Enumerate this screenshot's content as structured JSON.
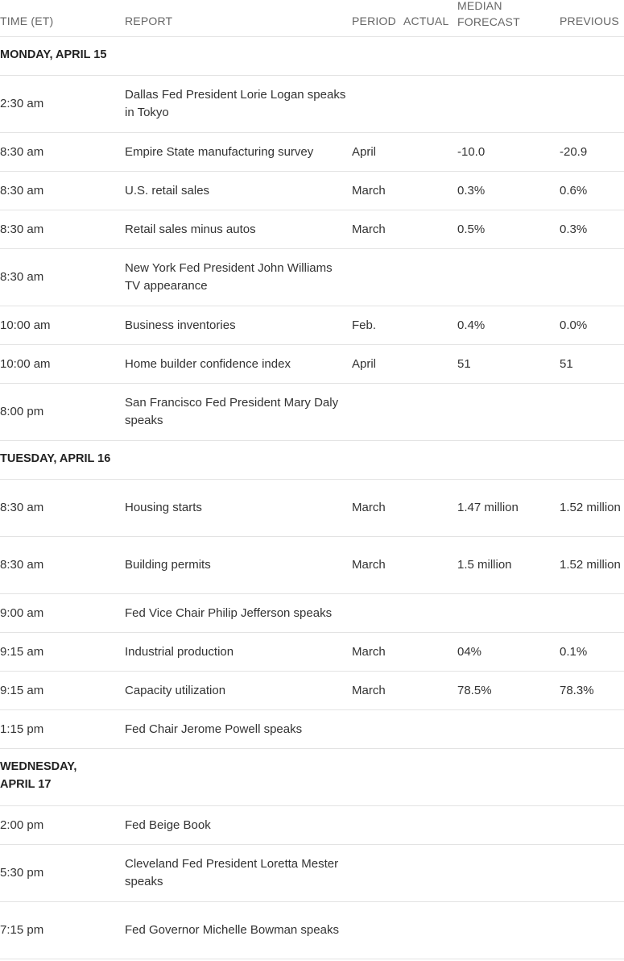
{
  "header": {
    "time": "TIME (ET)",
    "report": "REPORT",
    "period": "PERIOD",
    "actual": "ACTUAL",
    "forecast": "MEDIAN FORECAST",
    "previous": "PREVIOUS"
  },
  "days": [
    {
      "label": "MONDAY, APRIL 15",
      "rows": [
        {
          "time": "2:30 am",
          "report": "Dallas Fed President Lorie Logan speaks in Tokyo",
          "period": "",
          "actual": "",
          "forecast": "",
          "previous": ""
        },
        {
          "time": "8:30 am",
          "report": "Empire State manufacturing survey",
          "period": "April",
          "actual": "",
          "forecast": "-10.0",
          "previous": "-20.9"
        },
        {
          "time": "8:30 am",
          "report": "U.S. retail sales",
          "period": "March",
          "actual": "",
          "forecast": "0.3%",
          "previous": "0.6%"
        },
        {
          "time": "8:30 am",
          "report": "Retail sales minus autos",
          "period": "March",
          "actual": "",
          "forecast": "0.5%",
          "previous": "0.3%"
        },
        {
          "time": "8:30 am",
          "report": "New York Fed President John Williams TV appearance",
          "period": "",
          "actual": "",
          "forecast": "",
          "previous": ""
        },
        {
          "time": "10:00 am",
          "report": "Business inventories",
          "period": "Feb.",
          "actual": "",
          "forecast": "0.4%",
          "previous": "0.0%"
        },
        {
          "time": "10:00 am",
          "report": "Home builder confidence index",
          "period": "April",
          "actual": "",
          "forecast": "51",
          "previous": "51"
        },
        {
          "time": "8:00 pm",
          "report": "San Francisco Fed President Mary Daly speaks",
          "period": "",
          "actual": "",
          "forecast": "",
          "previous": ""
        }
      ]
    },
    {
      "label": "TUESDAY, APRIL 16",
      "rows": [
        {
          "time": "8:30 am",
          "report": "Housing starts",
          "period": "March",
          "actual": "",
          "forecast": "1.47 million",
          "previous": "1.52 million"
        },
        {
          "time": "8:30 am",
          "report": "Building permits",
          "period": "March",
          "actual": "",
          "forecast": "1.5 million",
          "previous": "1.52 million"
        },
        {
          "time": "9:00 am",
          "report": "Fed Vice Chair Philip Jefferson speaks",
          "period": "",
          "actual": "",
          "forecast": "",
          "previous": ""
        },
        {
          "time": "9:15 am",
          "report": "Industrial production",
          "period": "March",
          "actual": "",
          "forecast": "04%",
          "previous": "0.1%"
        },
        {
          "time": "9:15 am",
          "report": "Capacity utilization",
          "period": "March",
          "actual": "",
          "forecast": "78.5%",
          "previous": "78.3%"
        },
        {
          "time": "1:15 pm",
          "report": "Fed Chair Jerome Powell speaks",
          "period": "",
          "actual": "",
          "forecast": "",
          "previous": ""
        }
      ]
    },
    {
      "label": "WEDNESDAY, APRIL 17",
      "rows": [
        {
          "time": "2:00 pm",
          "report": "Fed Beige Book",
          "period": "",
          "actual": "",
          "forecast": "",
          "previous": ""
        },
        {
          "time": "5:30 pm",
          "report": "Cleveland Fed President Loretta Mester speaks",
          "period": "",
          "actual": "",
          "forecast": "",
          "previous": ""
        },
        {
          "time": "7:15 pm",
          "report": "Fed Governor Michelle Bowman speaks",
          "period": "",
          "actual": "",
          "forecast": "",
          "previous": ""
        }
      ]
    }
  ]
}
